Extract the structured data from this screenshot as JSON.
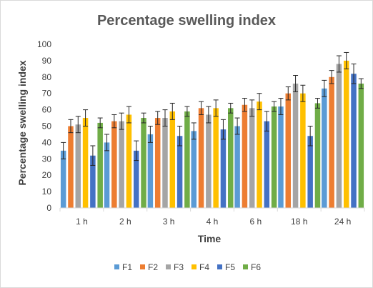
{
  "chart_data": {
    "type": "bar",
    "title": "Percentage  swelling index",
    "xlabel": "Time",
    "ylabel": "Percentage swelling index",
    "categories": [
      "1 h",
      "2 h",
      "3 h",
      "4 h",
      "6 h",
      "18 h",
      "24 h"
    ],
    "ylim": [
      0,
      100
    ],
    "yticks": [
      0,
      10,
      20,
      30,
      40,
      50,
      60,
      70,
      80,
      90,
      100
    ],
    "grid": false,
    "legend_position": "bottom",
    "error_bars": true,
    "series": [
      {
        "name": "F1",
        "color": "#5B9BD5",
        "values": [
          35,
          40,
          45,
          47,
          50,
          62,
          73
        ],
        "errors": [
          5,
          5,
          5,
          5,
          5,
          5,
          5
        ]
      },
      {
        "name": "F2",
        "color": "#ED7D31",
        "values": [
          50,
          53,
          55,
          61,
          63,
          70,
          80
        ],
        "errors": [
          4,
          4,
          4,
          4,
          4,
          4,
          4
        ]
      },
      {
        "name": "F3",
        "color": "#A5A5A5",
        "values": [
          51,
          53,
          55,
          57,
          61,
          76,
          88
        ],
        "errors": [
          5,
          5,
          5,
          5,
          5,
          5,
          5
        ]
      },
      {
        "name": "F4",
        "color": "#FFC000",
        "values": [
          55,
          57,
          59,
          61,
          65,
          70,
          90
        ],
        "errors": [
          5,
          5,
          5,
          5,
          5,
          5,
          5
        ]
      },
      {
        "name": "F5",
        "color": "#4472C4",
        "values": [
          32,
          35,
          44,
          48,
          53,
          44,
          82
        ],
        "errors": [
          6,
          6,
          6,
          6,
          6,
          6,
          6
        ]
      },
      {
        "name": "F6",
        "color": "#70AD47",
        "values": [
          52,
          55,
          59,
          61,
          62,
          64,
          76
        ],
        "errors": [
          3,
          3,
          3,
          3,
          3,
          3,
          3
        ]
      }
    ]
  }
}
